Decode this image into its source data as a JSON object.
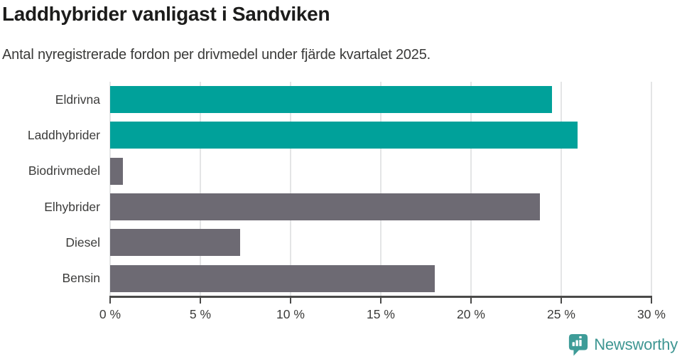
{
  "header": {
    "title": "Laddhybrider vanligast i Sandviken",
    "subtitle": "Antal nyregistrerade fordon per drivmedel under fjärde kvartalet 2025."
  },
  "chart_data": {
    "type": "bar",
    "orientation": "horizontal",
    "title": "Laddhybrider vanligast i Sandviken",
    "subtitle": "Antal nyregistrerade fordon per drivmedel under fjärde kvartalet 2025.",
    "categories": [
      "Eldrivna",
      "Laddhybrider",
      "Biodrivmedel",
      "Elhybrider",
      "Diesel",
      "Bensin"
    ],
    "values": [
      24.5,
      25.9,
      0.7,
      23.8,
      7.2,
      18.0
    ],
    "unit": "%",
    "bar_colors": [
      "#00a19a",
      "#00a19a",
      "#6d6a73",
      "#6d6a73",
      "#6d6a73",
      "#6d6a73"
    ],
    "xlabel": "",
    "ylabel": "",
    "xlim": [
      0,
      30
    ],
    "x_ticks": [
      0,
      5,
      10,
      15,
      20,
      25,
      30
    ],
    "x_tick_labels": [
      "0 %",
      "5 %",
      "10 %",
      "15 %",
      "20 %",
      "25 %",
      "30 %"
    ],
    "grid": "vertical",
    "legend": "none"
  },
  "colors": {
    "highlight_bar": "#00a19a",
    "default_bar": "#6d6a73",
    "gridline": "#e4e5e6",
    "axis": "#4a4a49",
    "label_text": "#3c3c3b",
    "title_text": "#1c1c1b",
    "logo_teal": "#3e9692"
  },
  "footer": {
    "brand": "Newsworthy"
  }
}
